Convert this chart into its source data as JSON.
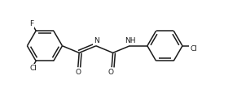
{
  "bg_color": "#ffffff",
  "line_color": "#1a1a1a",
  "line_width": 1.1,
  "font_size": 6.5,
  "font_color": "#1a1a1a",
  "figsize": [
    2.91,
    1.25
  ],
  "dpi": 100,
  "xlim": [
    0,
    10
  ],
  "ylim": [
    0,
    4.3
  ]
}
